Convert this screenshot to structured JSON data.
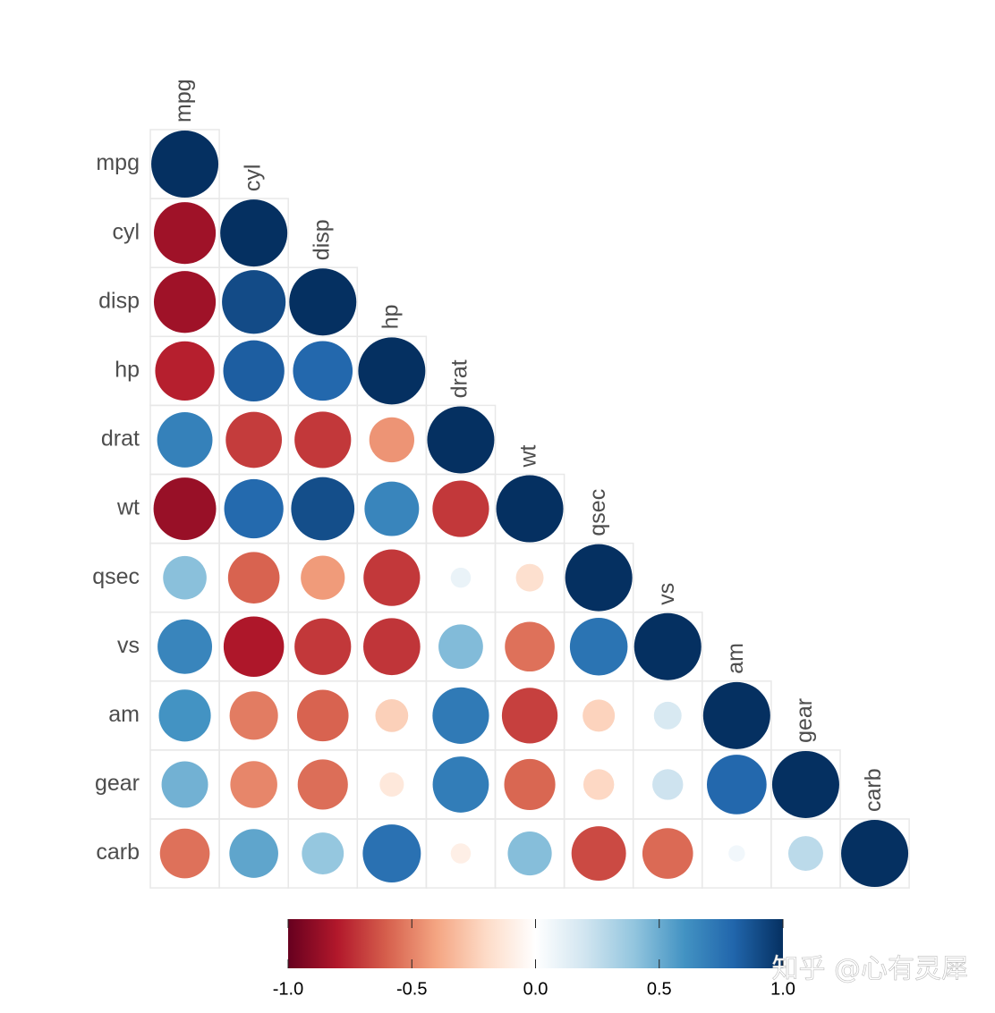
{
  "chart_data": {
    "type": "corrplot",
    "variables": [
      "mpg",
      "cyl",
      "disp",
      "hp",
      "drat",
      "wt",
      "qsec",
      "vs",
      "am",
      "gear",
      "carb"
    ],
    "matrix": [
      [
        1
      ],
      [
        -0.85,
        1
      ],
      [
        -0.85,
        0.9,
        1
      ],
      [
        -0.78,
        0.83,
        0.79,
        1
      ],
      [
        0.68,
        -0.7,
        -0.71,
        -0.45,
        1
      ],
      [
        -0.87,
        0.78,
        0.89,
        0.66,
        -0.71,
        1
      ],
      [
        0.42,
        -0.59,
        -0.43,
        -0.71,
        0.09,
        -0.17,
        1
      ],
      [
        0.66,
        -0.81,
        -0.71,
        -0.72,
        0.44,
        -0.55,
        0.74,
        1
      ],
      [
        0.6,
        -0.52,
        -0.59,
        -0.24,
        0.71,
        -0.69,
        -0.23,
        0.17,
        1
      ],
      [
        0.48,
        -0.49,
        -0.56,
        -0.13,
        0.7,
        -0.58,
        -0.21,
        0.21,
        0.79,
        1
      ],
      [
        -0.55,
        0.53,
        0.39,
        0.75,
        -0.09,
        0.43,
        -0.66,
        -0.57,
        0.06,
        0.27,
        1
      ]
    ],
    "colors": [
      "#67001F",
      "#B2182B",
      "#D6604D",
      "#F4A582",
      "#FDDBC7",
      "#FFFFFF",
      "#D1E5F0",
      "#92C5DE",
      "#4393C3",
      "#2166AC",
      "#053061"
    ],
    "clim": [
      -1,
      1
    ],
    "cticks": [
      {
        "value": -1,
        "label": "-1.0"
      },
      -0.5,
      {
        "value": 0,
        "label": "0.0"
      },
      0.5,
      {
        "value": 1,
        "label": "1.0"
      }
    ],
    "watermark": "知乎 @心有灵犀"
  }
}
